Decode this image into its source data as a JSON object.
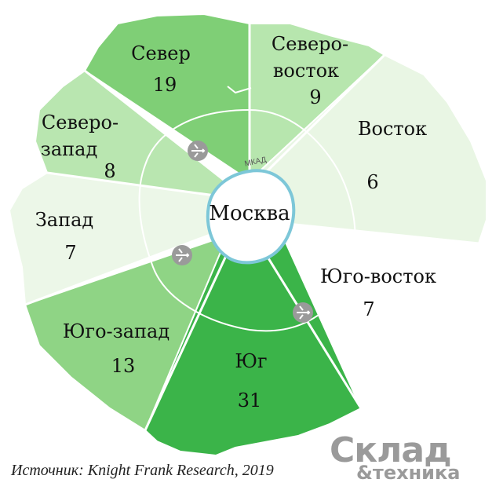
{
  "center": "Москва",
  "ring_label": "МКАД",
  "sectors": [
    {
      "id": "north",
      "lines": [
        "Север"
      ],
      "value": "19",
      "color": "#7fcf76"
    },
    {
      "id": "northeast",
      "lines": [
        "Северо-",
        "восток"
      ],
      "value": "9",
      "color": "#b7e6ae"
    },
    {
      "id": "east",
      "lines": [
        "Восток"
      ],
      "value": "6",
      "color": "#e9f6e4"
    },
    {
      "id": "southeast",
      "lines": [
        "Юго-восток"
      ],
      "value": "7",
      "color": "#ffffff"
    },
    {
      "id": "south",
      "lines": [
        "Юг"
      ],
      "value": "31",
      "color": "#3bb449"
    },
    {
      "id": "southwest",
      "lines": [
        "Юго-запад"
      ],
      "value": "13",
      "color": "#8fd485"
    },
    {
      "id": "west",
      "lines": [
        "Запад"
      ],
      "value": "7",
      "color": "#ecf7e8"
    },
    {
      "id": "northwest",
      "lines": [
        "Северо-",
        "запад"
      ],
      "value": "8",
      "color": "#b9e6b0"
    }
  ],
  "airport_icon": "airplane-icon",
  "source": "Источник: Knight Frank Research, 2019",
  "logo": {
    "word1": "Склад",
    "word2": "&техника"
  }
}
